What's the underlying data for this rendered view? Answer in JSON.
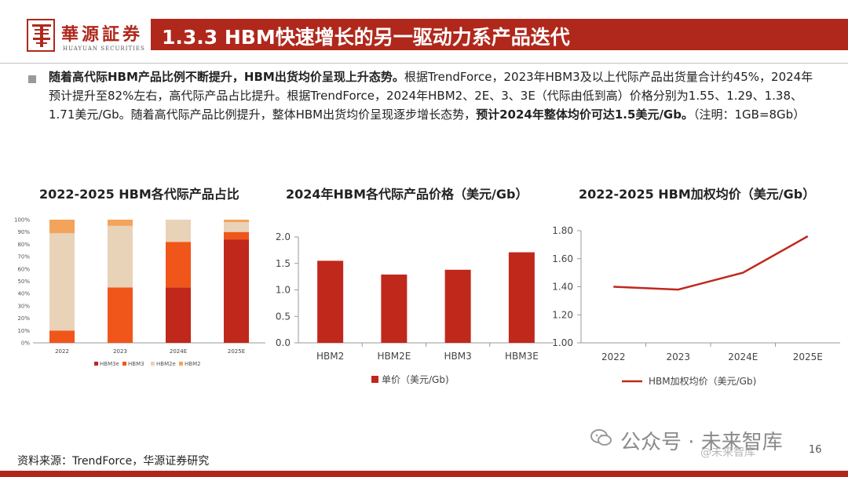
{
  "header": {
    "logo_cn": "華源証券",
    "logo_en": "HUAYUAN SECURITIES",
    "title": "1.3.3 HBM快速增长的另一驱动力系产品迭代"
  },
  "body": {
    "p1_bold": "随着高代际HBM产品比例不断提升，HBM出货均价呈现上升态势。",
    "p1_text": "根据TrendForce，2023年HBM3及以上代际产品出货量合计约45%，2024年预计提升至82%左右，高代际产品占比提升。根据TrendForce，2024年HBM2、2E、3、3E（代际由低到高）价格分别为1.55、1.29、1.38、1.71美元/Gb。随着高代际产品比例提升，整体HBM出货均价呈现逐步增长态势，",
    "p1_bold2": "预计2024年整体均价可达1.5美元/Gb。",
    "p1_note": "（注明：1GB=8Gb）"
  },
  "chart_data": [
    {
      "type": "bar",
      "stacked": true,
      "title": "2022-2025 HBM各代际产品占比",
      "categories": [
        "2022",
        "2023",
        "2024E",
        "2025E"
      ],
      "series": [
        {
          "name": "HBM3e",
          "color": "#c0281c",
          "values": [
            0,
            0,
            45,
            84
          ]
        },
        {
          "name": "HBM3",
          "color": "#f0561a",
          "values": [
            10,
            45,
            37,
            6
          ]
        },
        {
          "name": "HBM2e",
          "color": "#e8d2b8",
          "values": [
            79,
            50,
            18,
            8
          ]
        },
        {
          "name": "HBM2",
          "color": "#f4a35a",
          "values": [
            11,
            5,
            0,
            2
          ]
        }
      ],
      "yticks": [
        "0%",
        "10%",
        "20%",
        "30%",
        "40%",
        "50%",
        "60%",
        "70%",
        "80%",
        "90%",
        "100%"
      ],
      "ylim": [
        0,
        100
      ]
    },
    {
      "type": "bar",
      "title": "2024年HBM各代际产品价格（美元/Gb）",
      "categories": [
        "HBM2",
        "HBM2E",
        "HBM3",
        "HBM3E"
      ],
      "series": [
        {
          "name": "单价（美元/Gb)",
          "color": "#c0281c",
          "values": [
            1.55,
            1.29,
            1.38,
            1.71
          ]
        }
      ],
      "yticks": [
        "0.0",
        "0.5",
        "1.0",
        "1.5",
        "2.0"
      ],
      "ylim": [
        0,
        2.0
      ]
    },
    {
      "type": "line",
      "title": "2022-2025 HBM加权均价（美元/Gb）",
      "categories": [
        "2022",
        "2023",
        "2024E",
        "2025E"
      ],
      "series": [
        {
          "name": "HBM加权均价（美元/Gb)",
          "color": "#c0281c",
          "values": [
            1.4,
            1.38,
            1.5,
            1.76
          ]
        }
      ],
      "yticks": [
        "1.00",
        "1.20",
        "1.40",
        "1.60",
        "1.80"
      ],
      "ylim": [
        1.0,
        1.8
      ]
    }
  ],
  "footer": {
    "source": "资料来源：TrendForce，华源证券研究",
    "watermark": "公众号 · 未来智库",
    "watermark2": "@未来智库",
    "page": "16"
  }
}
